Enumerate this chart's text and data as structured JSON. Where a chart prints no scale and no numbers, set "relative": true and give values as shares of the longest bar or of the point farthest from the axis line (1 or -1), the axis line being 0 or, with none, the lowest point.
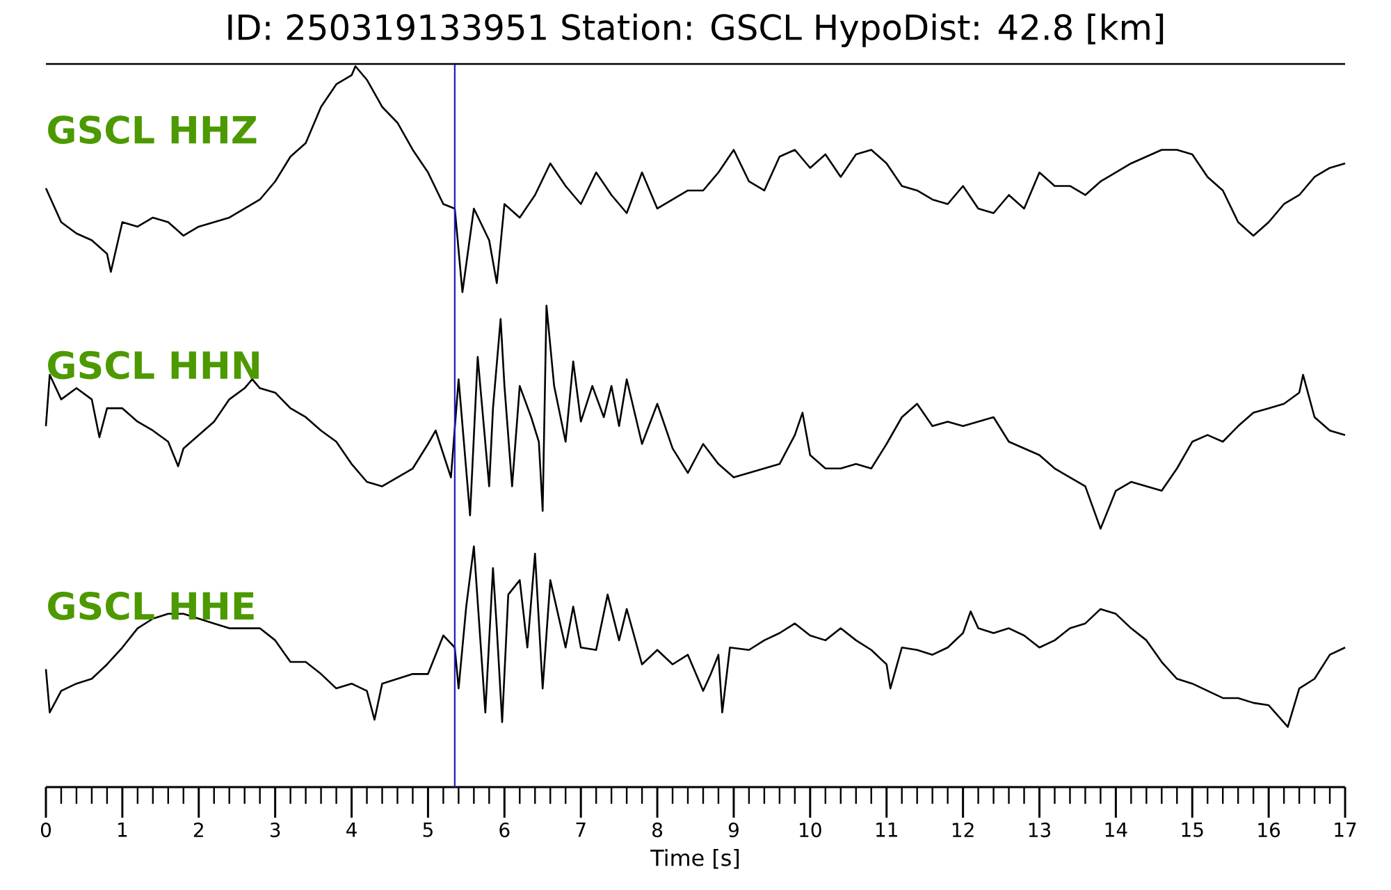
{
  "chart_data": [
    {
      "type": "line",
      "title": "ID: 250319133951   Station: GSCL   HypoDist:    42.8 [km]",
      "relative": true,
      "xlim": [
        0,
        17
      ],
      "tick_labels": false,
      "annotations": [
        "GSCL HHZ"
      ],
      "ref_lines": [
        {
          "axis": "x",
          "value": 5.35,
          "color": "#1a1acc"
        }
      ],
      "series": [
        {
          "color": "#000000",
          "x": [
            0,
            0.2,
            0.4,
            0.6,
            0.8,
            0.85,
            1.0,
            1.2,
            1.4,
            1.6,
            1.8,
            2.0,
            2.2,
            2.4,
            2.6,
            2.8,
            3.0,
            3.2,
            3.4,
            3.6,
            3.8,
            4.0,
            4.05,
            4.2,
            4.4,
            4.6,
            4.8,
            5.0,
            5.2,
            5.35,
            5.45,
            5.6,
            5.8,
            5.9,
            6.0,
            6.2,
            6.4,
            6.6,
            6.8,
            7.0,
            7.2,
            7.4,
            7.6,
            7.8,
            8.0,
            8.2,
            8.4,
            8.6,
            8.8,
            9.0,
            9.2,
            9.4,
            9.6,
            9.8,
            10.0,
            10.2,
            10.4,
            10.6,
            10.8,
            11.0,
            11.2,
            11.4,
            11.6,
            11.8,
            12.0,
            12.2,
            12.4,
            12.6,
            12.8,
            13.0,
            13.2,
            13.4,
            13.6,
            13.8,
            14.0,
            14.2,
            14.4,
            14.6,
            14.8,
            15.0,
            15.2,
            15.4,
            15.6,
            15.8,
            16.0,
            16.2,
            16.4,
            16.6,
            16.8,
            17.0
          ],
          "values": [
            0.46,
            0.31,
            0.26,
            0.23,
            0.17,
            0.09,
            0.31,
            0.29,
            0.33,
            0.31,
            0.25,
            0.29,
            0.31,
            0.33,
            0.37,
            0.41,
            0.49,
            0.6,
            0.66,
            0.82,
            0.92,
            0.96,
            1,
            0.94,
            0.82,
            0.75,
            0.63,
            0.53,
            0.39,
            0.37,
            0,
            0.37,
            0.23,
            0.04,
            0.39,
            0.33,
            0.43,
            0.57,
            0.47,
            0.39,
            0.53,
            0.43,
            0.35,
            0.53,
            0.37,
            0.41,
            0.45,
            0.45,
            0.53,
            0.63,
            0.49,
            0.45,
            0.6,
            0.63,
            0.55,
            0.61,
            0.51,
            0.61,
            0.63,
            0.57,
            0.47,
            0.45,
            0.41,
            0.39,
            0.47,
            0.37,
            0.35,
            0.43,
            0.37,
            0.53,
            0.47,
            0.47,
            0.43,
            0.49,
            0.53,
            0.57,
            0.6,
            0.63,
            0.63,
            0.61,
            0.51,
            0.45,
            0.31,
            0.25,
            0.31,
            0.39,
            0.43,
            0.51,
            0.55,
            0.57
          ]
        }
      ]
    },
    {
      "type": "line",
      "relative": true,
      "xlim": [
        0,
        17
      ],
      "tick_labels": false,
      "annotations": [
        "GSCL HHN"
      ],
      "ref_lines": [
        {
          "axis": "x",
          "value": 5.35,
          "color": "#1a1acc"
        }
      ],
      "series": [
        {
          "color": "#000000",
          "x": [
            0,
            0.05,
            0.2,
            0.4,
            0.6,
            0.7,
            0.8,
            1.0,
            1.2,
            1.4,
            1.6,
            1.73,
            1.8,
            2.0,
            2.2,
            2.4,
            2.6,
            2.7,
            2.8,
            3.0,
            3.2,
            3.4,
            3.6,
            3.8,
            4.0,
            4.2,
            4.4,
            4.6,
            4.8,
            5.0,
            5.1,
            5.3,
            5.4,
            5.55,
            5.65,
            5.8,
            5.85,
            5.95,
            6.0,
            6.1,
            6.2,
            6.35,
            6.45,
            6.5,
            6.55,
            6.65,
            6.8,
            6.9,
            7.0,
            7.15,
            7.3,
            7.4,
            7.5,
            7.6,
            7.8,
            8.0,
            8.2,
            8.4,
            8.6,
            8.8,
            9.0,
            9.2,
            9.4,
            9.6,
            9.8,
            9.9,
            10.0,
            10.2,
            10.4,
            10.6,
            10.8,
            11.0,
            11.2,
            11.4,
            11.6,
            11.8,
            12.0,
            12.2,
            12.4,
            12.6,
            12.8,
            13.0,
            13.2,
            13.4,
            13.6,
            13.8,
            14.0,
            14.2,
            14.4,
            14.6,
            14.8,
            15.0,
            15.2,
            15.4,
            15.6,
            15.8,
            16.0,
            16.2,
            16.4,
            16.45,
            16.6,
            16.8,
            17.0
          ],
          "values": [
            0.46,
            0.69,
            0.58,
            0.63,
            0.58,
            0.41,
            0.54,
            0.54,
            0.48,
            0.44,
            0.39,
            0.28,
            0.36,
            0.42,
            0.48,
            0.58,
            0.63,
            0.67,
            0.63,
            0.61,
            0.54,
            0.5,
            0.44,
            0.39,
            0.29,
            0.21,
            0.19,
            0.23,
            0.27,
            0.38,
            0.44,
            0.23,
            0.67,
            0.06,
            0.77,
            0.19,
            0.54,
            0.94,
            0.64,
            0.19,
            0.64,
            0.5,
            0.39,
            0.08,
            1,
            0.64,
            0.39,
            0.75,
            0.48,
            0.64,
            0.5,
            0.64,
            0.46,
            0.67,
            0.38,
            0.56,
            0.36,
            0.25,
            0.38,
            0.29,
            0.23,
            0.25,
            0.27,
            0.29,
            0.42,
            0.52,
            0.33,
            0.27,
            0.27,
            0.29,
            0.27,
            0.38,
            0.5,
            0.56,
            0.46,
            0.48,
            0.46,
            0.48,
            0.5,
            0.39,
            0.36,
            0.33,
            0.27,
            0.23,
            0.19,
            0,
            0.17,
            0.21,
            0.19,
            0.17,
            0.27,
            0.39,
            0.42,
            0.39,
            0.46,
            0.52,
            0.54,
            0.56,
            0.61,
            0.69,
            0.5,
            0.44,
            0.42
          ]
        }
      ]
    },
    {
      "type": "line",
      "relative": true,
      "xlim": [
        0,
        17
      ],
      "xlabel": "Time [s]",
      "xticks": [
        0,
        1,
        2,
        3,
        4,
        5,
        6,
        7,
        8,
        9,
        10,
        11,
        12,
        13,
        14,
        15,
        16,
        17
      ],
      "annotations": [
        "GSCL HHE"
      ],
      "ref_lines": [
        {
          "axis": "x",
          "value": 5.35,
          "color": "#1a1acc"
        }
      ],
      "series": [
        {
          "color": "#000000",
          "x": [
            0,
            0.05,
            0.2,
            0.4,
            0.6,
            0.8,
            1.0,
            1.2,
            1.4,
            1.6,
            1.8,
            2.0,
            2.2,
            2.4,
            2.6,
            2.8,
            3.0,
            3.2,
            3.4,
            3.6,
            3.8,
            4.0,
            4.2,
            4.3,
            4.4,
            4.6,
            4.8,
            5.0,
            5.2,
            5.35,
            5.4,
            5.5,
            5.6,
            5.75,
            5.85,
            5.9,
            5.97,
            6.05,
            6.2,
            6.3,
            6.4,
            6.5,
            6.6,
            6.8,
            6.9,
            7.0,
            7.2,
            7.35,
            7.5,
            7.6,
            7.8,
            8.0,
            8.2,
            8.4,
            8.6,
            8.7,
            8.8,
            8.85,
            8.95,
            9.2,
            9.4,
            9.6,
            9.8,
            10.0,
            10.2,
            10.4,
            10.6,
            10.8,
            11.0,
            11.05,
            11.2,
            11.4,
            11.6,
            11.8,
            12.0,
            12.1,
            12.2,
            12.4,
            12.6,
            12.8,
            13.0,
            13.2,
            13.4,
            13.6,
            13.8,
            14.0,
            14.2,
            14.4,
            14.6,
            14.8,
            15.0,
            15.2,
            15.4,
            15.6,
            15.8,
            16.0,
            16.25,
            16.4,
            16.6,
            16.8,
            17.0
          ],
          "values": [
            0.49,
            0.31,
            0.4,
            0.43,
            0.45,
            0.51,
            0.58,
            0.66,
            0.7,
            0.72,
            0.72,
            0.7,
            0.68,
            0.66,
            0.66,
            0.66,
            0.61,
            0.52,
            0.52,
            0.47,
            0.41,
            0.43,
            0.4,
            0.28,
            0.43,
            0.45,
            0.47,
            0.47,
            0.63,
            0.58,
            0.41,
            0.75,
            1,
            0.31,
            0.91,
            0.66,
            0.27,
            0.8,
            0.86,
            0.58,
            0.97,
            0.41,
            0.86,
            0.58,
            0.75,
            0.58,
            0.57,
            0.8,
            0.61,
            0.74,
            0.51,
            0.57,
            0.51,
            0.55,
            0.4,
            0.47,
            0.55,
            0.31,
            0.58,
            0.57,
            0.61,
            0.64,
            0.68,
            0.63,
            0.61,
            0.66,
            0.61,
            0.57,
            0.51,
            0.41,
            0.58,
            0.57,
            0.55,
            0.58,
            0.64,
            0.73,
            0.66,
            0.64,
            0.66,
            0.63,
            0.58,
            0.61,
            0.66,
            0.68,
            0.74,
            0.72,
            0.66,
            0.61,
            0.52,
            0.45,
            0.43,
            0.4,
            0.37,
            0.37,
            0.35,
            0.34,
            0.25,
            0.41,
            0.45,
            0.55,
            0.58
          ]
        }
      ]
    }
  ]
}
